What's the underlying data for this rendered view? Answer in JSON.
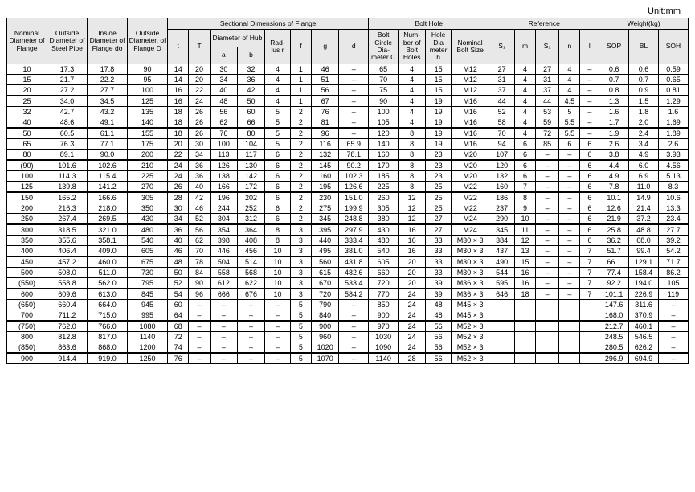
{
  "unit_label": "Unit:mm",
  "headers": {
    "nom": "Nominal Diameter of Flange",
    "od": "Outside Diameter of Steel Pipe",
    "id": "Inside Diameter of Flange do",
    "fd": "Outside Diameter. of Flange D",
    "sectional": "Sectional Dimensions of Flange",
    "bolthole": "Bolt Hole",
    "reference": "Reference",
    "weight": "Weight(kg)",
    "t": "t",
    "T": "T",
    "hub": "Diameter of Hub",
    "a": "a",
    "b": "b",
    "r": "Rad-ius r",
    "f": "f",
    "g": "g",
    "d": "d",
    "bc": "Bolt Circle Dia-meter C",
    "nb": "Num-ber of Bolt Holes",
    "hd": "Hole Dia meter h",
    "bs": "Nominal Bolt Size",
    "s1": "S₁",
    "m": "m",
    "s2": "S₂",
    "n": "n",
    "l": "l",
    "sop": "SOP",
    "bl": "BL",
    "soh": "SOH"
  },
  "groups": [
    [
      [
        "10",
        "17.3",
        "17.8",
        "90",
        "14",
        "20",
        "30",
        "32",
        "4",
        "1",
        "46",
        "–",
        "65",
        "4",
        "15",
        "M12",
        "27",
        "4",
        "27",
        "4",
        "–",
        "0.6",
        "0.6",
        "0.59"
      ],
      [
        "15",
        "21.7",
        "22.2",
        "95",
        "14",
        "20",
        "34",
        "36",
        "4",
        "1",
        "51",
        "–",
        "70",
        "4",
        "15",
        "M12",
        "31",
        "4",
        "31",
        "4",
        "–",
        "0.7",
        "0.7",
        "0.65"
      ],
      [
        "20",
        "27.2",
        "27.7",
        "100",
        "16",
        "22",
        "40",
        "42",
        "4",
        "1",
        "56",
        "–",
        "75",
        "4",
        "15",
        "M12",
        "37",
        "4",
        "37",
        "4",
        "–",
        "0.8",
        "0.9",
        "0.81"
      ]
    ],
    [
      [
        "25",
        "34.0",
        "34.5",
        "125",
        "16",
        "24",
        "48",
        "50",
        "4",
        "1",
        "67",
        "–",
        "90",
        "4",
        "19",
        "M16",
        "44",
        "4",
        "44",
        "4.5",
        "–",
        "1.3",
        "1.5",
        "1.29"
      ],
      [
        "32",
        "42.7",
        "43.2",
        "135",
        "18",
        "26",
        "56",
        "60",
        "5",
        "2",
        "76",
        "–",
        "100",
        "4",
        "19",
        "M16",
        "52",
        "4",
        "53",
        "5",
        "–",
        "1.6",
        "1.8",
        "1.6"
      ],
      [
        "40",
        "48.6",
        "49.1",
        "140",
        "18",
        "26",
        "62",
        "66",
        "5",
        "2",
        "81",
        "–",
        "105",
        "4",
        "19",
        "M16",
        "58",
        "4",
        "59",
        "5.5",
        "–",
        "1.7",
        "2.0",
        "1.69"
      ]
    ],
    [
      [
        "50",
        "60.5",
        "61.1",
        "155",
        "18",
        "26",
        "76",
        "80",
        "5",
        "2",
        "96",
        "–",
        "120",
        "8",
        "19",
        "M16",
        "70",
        "4",
        "72",
        "5.5",
        "–",
        "1.9",
        "2.4",
        "1.89"
      ],
      [
        "65",
        "76.3",
        "77.1",
        "175",
        "20",
        "30",
        "100",
        "104",
        "5",
        "2",
        "116",
        "65.9",
        "140",
        "8",
        "19",
        "M16",
        "94",
        "6",
        "85",
        "6",
        "6",
        "2.6",
        "3.4",
        "2.6"
      ],
      [
        "80",
        "89.1",
        "90.0",
        "200",
        "22",
        "34",
        "113",
        "117",
        "6",
        "2",
        "132",
        "78.1",
        "160",
        "8",
        "23",
        "M20",
        "107",
        "6",
        "–",
        "–",
        "6",
        "3.8",
        "4.9",
        "3.93"
      ]
    ],
    [
      [
        "(90)",
        "101.6",
        "102.6",
        "210",
        "24",
        "36",
        "126",
        "130",
        "6",
        "2",
        "145",
        "90.2",
        "170",
        "8",
        "23",
        "M20",
        "120",
        "6",
        "–",
        "–",
        "6",
        "4.4",
        "6.0",
        "4.56"
      ],
      [
        "100",
        "114.3",
        "115.4",
        "225",
        "24",
        "36",
        "138",
        "142",
        "6",
        "2",
        "160",
        "102.3",
        "185",
        "8",
        "23",
        "M20",
        "132",
        "6",
        "–",
        "–",
        "6",
        "4.9",
        "6.9",
        "5.13"
      ],
      [
        "125",
        "139.8",
        "141.2",
        "270",
        "26",
        "40",
        "166",
        "172",
        "6",
        "2",
        "195",
        "126.6",
        "225",
        "8",
        "25",
        "M22",
        "160",
        "7",
        "–",
        "–",
        "6",
        "7.8",
        "11.0",
        "8.3"
      ]
    ],
    [
      [
        "150",
        "165.2",
        "166.6",
        "305",
        "28",
        "42",
        "196",
        "202",
        "6",
        "2",
        "230",
        "151.0",
        "260",
        "12",
        "25",
        "M22",
        "186",
        "8",
        "–",
        "–",
        "6",
        "10.1",
        "14.9",
        "10.6"
      ],
      [
        "200",
        "216.3",
        "218.0",
        "350",
        "30",
        "46",
        "244",
        "252",
        "6",
        "2",
        "275",
        "199.9",
        "305",
        "12",
        "25",
        "M22",
        "237",
        "9",
        "–",
        "–",
        "6",
        "12.6",
        "21.4",
        "13.3"
      ],
      [
        "250",
        "267.4",
        "269.5",
        "430",
        "34",
        "52",
        "304",
        "312",
        "6",
        "2",
        "345",
        "248.8",
        "380",
        "12",
        "27",
        "M24",
        "290",
        "10",
        "–",
        "–",
        "6",
        "21.9",
        "37.2",
        "23.4"
      ]
    ],
    [
      [
        "300",
        "318.5",
        "321.0",
        "480",
        "36",
        "56",
        "354",
        "364",
        "8",
        "3",
        "395",
        "297.9",
        "430",
        "16",
        "27",
        "M24",
        "345",
        "11",
        "–",
        "–",
        "6",
        "25.8",
        "48.8",
        "27.7"
      ],
      [
        "350",
        "355.6",
        "358.1",
        "540",
        "40",
        "62",
        "398",
        "408",
        "8",
        "3",
        "440",
        "333.4",
        "480",
        "16",
        "33",
        "M30 × 3",
        "384",
        "12",
        "–",
        "–",
        "6",
        "36.2",
        "68.0",
        "39.2"
      ],
      [
        "400",
        "406.4",
        "409.0",
        "605",
        "46",
        "70",
        "446",
        "456",
        "10",
        "3",
        "495",
        "381.0",
        "540",
        "16",
        "33",
        "M30 × 3",
        "437",
        "13",
        "–",
        "–",
        "7",
        "51.7",
        "99.4",
        "54.2"
      ]
    ],
    [
      [
        "450",
        "457.2",
        "460.0",
        "675",
        "48",
        "78",
        "504",
        "514",
        "10",
        "3",
        "560",
        "431.8",
        "605",
        "20",
        "33",
        "M30 × 3",
        "490",
        "15",
        "–",
        "–",
        "7",
        "66.1",
        "129.1",
        "71.7"
      ],
      [
        "500",
        "508.0",
        "511.0",
        "730",
        "50",
        "84",
        "558",
        "568",
        "10",
        "3",
        "615",
        "482.6",
        "660",
        "20",
        "33",
        "M30 × 3",
        "544",
        "16",
        "–",
        "–",
        "7",
        "77.4",
        "158.4",
        "86.2"
      ],
      [
        "(550)",
        "558.8",
        "562.0",
        "795",
        "52",
        "90",
        "612",
        "622",
        "10",
        "3",
        "670",
        "533.4",
        "720",
        "20",
        "39",
        "M36 × 3",
        "595",
        "16",
        "–",
        "–",
        "7",
        "92.2",
        "194.0",
        "105"
      ]
    ],
    [
      [
        "600",
        "609.6",
        "613.0",
        "845",
        "54",
        "96",
        "666",
        "676",
        "10",
        "3",
        "720",
        "584.2",
        "770",
        "24",
        "39",
        "M36 × 3",
        "646",
        "18",
        "–",
        "–",
        "7",
        "101.1",
        "226.9",
        "119"
      ],
      [
        "(650)",
        "660.4",
        "664.0",
        "945",
        "60",
        "–",
        "–",
        "–",
        "–",
        "5",
        "790",
        "–",
        "850",
        "24",
        "48",
        "M45 × 3",
        "",
        "",
        "",
        "",
        "",
        "147.6",
        "311.6",
        "–"
      ],
      [
        "700",
        "711.2",
        "715.0",
        "995",
        "64",
        "–",
        "–",
        "–",
        "–",
        "5",
        "840",
        "–",
        "900",
        "24",
        "48",
        "M45 × 3",
        "",
        "",
        "",
        "",
        "",
        "168.0",
        "370.9",
        "–"
      ]
    ],
    [
      [
        "(750)",
        "762.0",
        "766.0",
        "1080",
        "68",
        "–",
        "–",
        "–",
        "–",
        "5",
        "900",
        "–",
        "970",
        "24",
        "56",
        "M52 × 3",
        "",
        "",
        "",
        "",
        "",
        "212.7",
        "460.1",
        "–"
      ],
      [
        "800",
        "812.8",
        "817.0",
        "1140",
        "72",
        "–",
        "–",
        "–",
        "–",
        "5",
        "960",
        "–",
        "1030",
        "24",
        "56",
        "M52 × 3",
        "",
        "",
        "",
        "",
        "",
        "248.5",
        "546.5",
        "–"
      ],
      [
        "(850)",
        "863.6",
        "868.0",
        "1200",
        "74",
        "–",
        "–",
        "–",
        "–",
        "5",
        "1020",
        "–",
        "1090",
        "24",
        "56",
        "M52 × 3",
        "",
        "",
        "",
        "",
        "",
        "280.5",
        "626.2",
        "–"
      ]
    ],
    [
      [
        "900",
        "914.4",
        "919.0",
        "1250",
        "76",
        "–",
        "–",
        "–",
        "–",
        "5",
        "1070",
        "–",
        "1140",
        "28",
        "56",
        "M52 × 3",
        "",
        "",
        "",
        "",
        "",
        "296.9",
        "694.9",
        "–"
      ]
    ]
  ]
}
